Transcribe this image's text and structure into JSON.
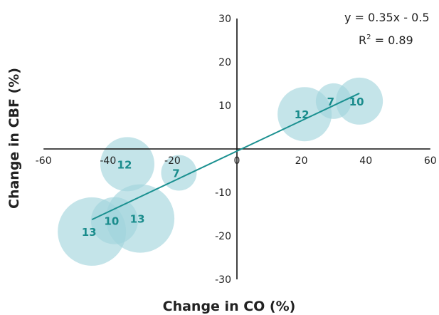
{
  "chart_data": {
    "type": "scatter",
    "title": "",
    "xlabel": "Change in CO (%)",
    "ylabel": "Change in CBF (%)",
    "xlim": [
      -60,
      60
    ],
    "ylim": [
      -30,
      30
    ],
    "x_ticks": [
      -60,
      -40,
      -20,
      0,
      20,
      40,
      60
    ],
    "y_ticks": [
      -30,
      -20,
      -10,
      10,
      20,
      30
    ],
    "x_tick_labels": [
      "-60",
      "-40",
      "-20",
      "0",
      "20",
      "40",
      "60"
    ],
    "y_tick_labels": [
      "-30",
      "-20",
      "-10",
      "10",
      "20",
      "30"
    ],
    "grid": false,
    "equation_line1": "y = 0.35x - 0.5",
    "equation_line2_prefix": "R",
    "equation_line2_sup": "2",
    "equation_line2_suffix": " = 0.89",
    "trendline": {
      "slope": 0.35,
      "intercept": -0.5,
      "x_range": [
        -45,
        38
      ]
    },
    "bubble_color": "#9fd3db",
    "line_color": "#1a9090",
    "label_color": "#1a8c8c",
    "points": [
      {
        "x": 21,
        "y": 8,
        "label": "12"
      },
      {
        "x": 30,
        "y": 11,
        "label": "7"
      },
      {
        "x": 38,
        "y": 11,
        "label": "10"
      },
      {
        "x": -34,
        "y": -3.5,
        "label": "12"
      },
      {
        "x": -18,
        "y": -5.5,
        "label": "7"
      },
      {
        "x": -45,
        "y": -19,
        "label": "13"
      },
      {
        "x": -38,
        "y": -16.5,
        "label": "10"
      },
      {
        "x": -30,
        "y": -16,
        "label": "13"
      }
    ]
  }
}
